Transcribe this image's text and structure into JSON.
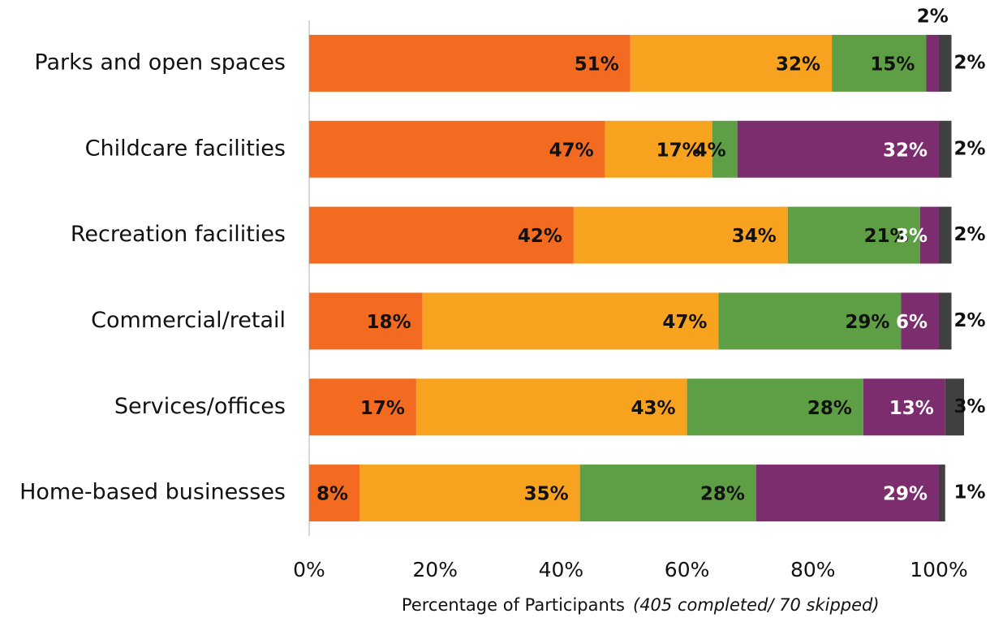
{
  "chart_data": {
    "type": "stacked_barh",
    "xlabel": "Percentage of Participants",
    "xlabel_note": "(405 completed/ 70 skipped)",
    "categories": [
      "Parks and open spaces",
      "Childcare facilities",
      "Recreation facilities",
      "Commercial/retail",
      "Services/offices",
      "Home-based businesses"
    ],
    "series": [
      {
        "color": "#f26b21",
        "values": [
          51,
          47,
          42,
          18,
          17,
          8
        ],
        "value_labels": [
          "51%",
          "47%",
          "42%",
          "18%",
          "17%",
          "8%"
        ]
      },
      {
        "color": "#f8a31f",
        "values": [
          32,
          17,
          34,
          47,
          43,
          35
        ],
        "value_labels": [
          "32%",
          "17%",
          "34%",
          "47%",
          "43%",
          "35%"
        ]
      },
      {
        "color": "#5e9e44",
        "values": [
          15,
          4,
          21,
          29,
          28,
          28
        ],
        "value_labels": [
          "15%",
          "4%",
          "21%",
          "29%",
          "28%",
          "28%"
        ]
      },
      {
        "color": "#7c2d6e",
        "values": [
          2,
          32,
          3,
          6,
          13,
          29
        ],
        "value_labels": [
          "2%",
          "32%",
          "3%",
          "6%",
          "13%",
          "29%"
        ]
      },
      {
        "color": "#404040",
        "values": [
          2,
          2,
          2,
          2,
          3,
          1
        ],
        "value_labels": [
          "2%",
          "2%",
          "2%",
          "2%",
          "3%",
          "1%"
        ]
      }
    ],
    "xlim": [
      0,
      100
    ],
    "xticks": [
      {
        "value": 0,
        "label": "0%"
      },
      {
        "value": 20,
        "label": "20%"
      },
      {
        "value": 40,
        "label": "40%"
      },
      {
        "value": 60,
        "label": "60%"
      },
      {
        "value": 80,
        "label": "80%"
      },
      {
        "value": 100,
        "label": "100%"
      }
    ]
  }
}
